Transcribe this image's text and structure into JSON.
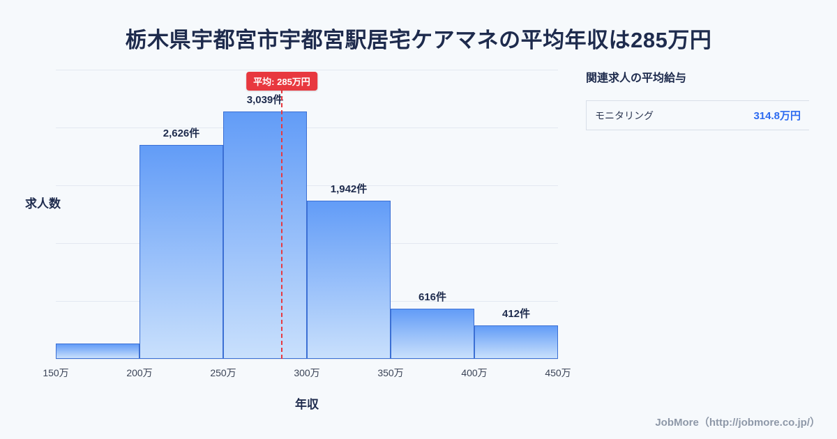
{
  "page": {
    "title": "栃木県宇都宮市宇都宮駅居宅ケアマネの平均年収は285万円",
    "footer": "JobMore（http://jobmore.co.jp/）"
  },
  "chart_data": {
    "type": "bar",
    "title": "栃木県宇都宮市宇都宮駅居宅ケアマネの平均年収は285万円",
    "xlabel": "年収",
    "ylabel": "求人数",
    "x_ticks": [
      "150万",
      "200万",
      "250万",
      "300万",
      "350万",
      "400万",
      "450万"
    ],
    "x_range": [
      150,
      450
    ],
    "ylim": [
      0,
      3550
    ],
    "grid": true,
    "bins": [
      {
        "range": "150万-200万",
        "value": 190,
        "label": ""
      },
      {
        "range": "200万-250万",
        "value": 2626,
        "label": "2,626件"
      },
      {
        "range": "250万-300万",
        "value": 3039,
        "label": "3,039件"
      },
      {
        "range": "300万-350万",
        "value": 1942,
        "label": "1,942件"
      },
      {
        "range": "350万-400万",
        "value": 616,
        "label": "616件"
      },
      {
        "range": "400万-450万",
        "value": 412,
        "label": "412件"
      }
    ],
    "average": {
      "value": 285,
      "label": "平均: 285万円"
    },
    "colors": {
      "bar_top": "#629cf7",
      "bar_bottom": "#c9e0fc",
      "bar_border": "#3b6fd4",
      "average_line": "#e8383f",
      "badge_bg": "#e8383f"
    }
  },
  "side_panel": {
    "title": "関連求人の平均給与",
    "rows": [
      {
        "label": "モニタリング",
        "value": "314.8万円"
      }
    ]
  }
}
